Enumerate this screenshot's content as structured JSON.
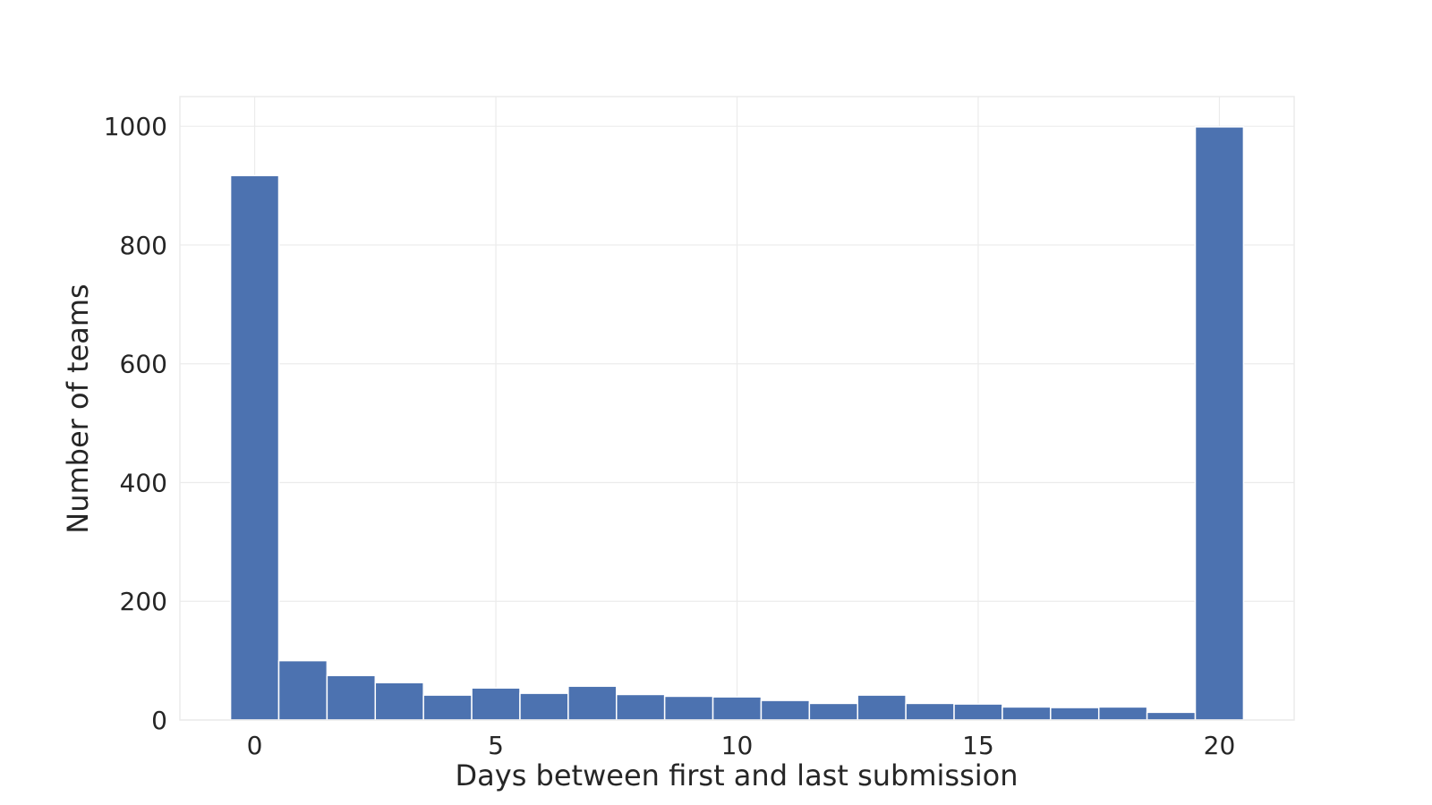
{
  "chart_data": {
    "type": "bar",
    "title": "",
    "xlabel": "Days between first and last submission",
    "ylabel": "Number of teams",
    "x": [
      0,
      1,
      2,
      3,
      4,
      5,
      6,
      7,
      8,
      9,
      10,
      11,
      12,
      13,
      14,
      15,
      16,
      17,
      18,
      19,
      20
    ],
    "values": [
      917,
      100,
      75,
      63,
      42,
      54,
      45,
      57,
      43,
      40,
      39,
      33,
      28,
      42,
      28,
      27,
      22,
      21,
      22,
      13,
      999
    ],
    "bar_width": 1,
    "xlim": [
      -1.55,
      21.55
    ],
    "ylim": [
      0,
      1050
    ],
    "xticks": [
      0,
      5,
      10,
      15,
      20
    ],
    "yticks": [
      0,
      200,
      400,
      600,
      800,
      1000
    ],
    "grid": true,
    "legend": "none",
    "colors": {
      "bar": "#4c72b0",
      "grid": "#ebebeb",
      "text": "#262626",
      "background": "#ffffff"
    }
  }
}
